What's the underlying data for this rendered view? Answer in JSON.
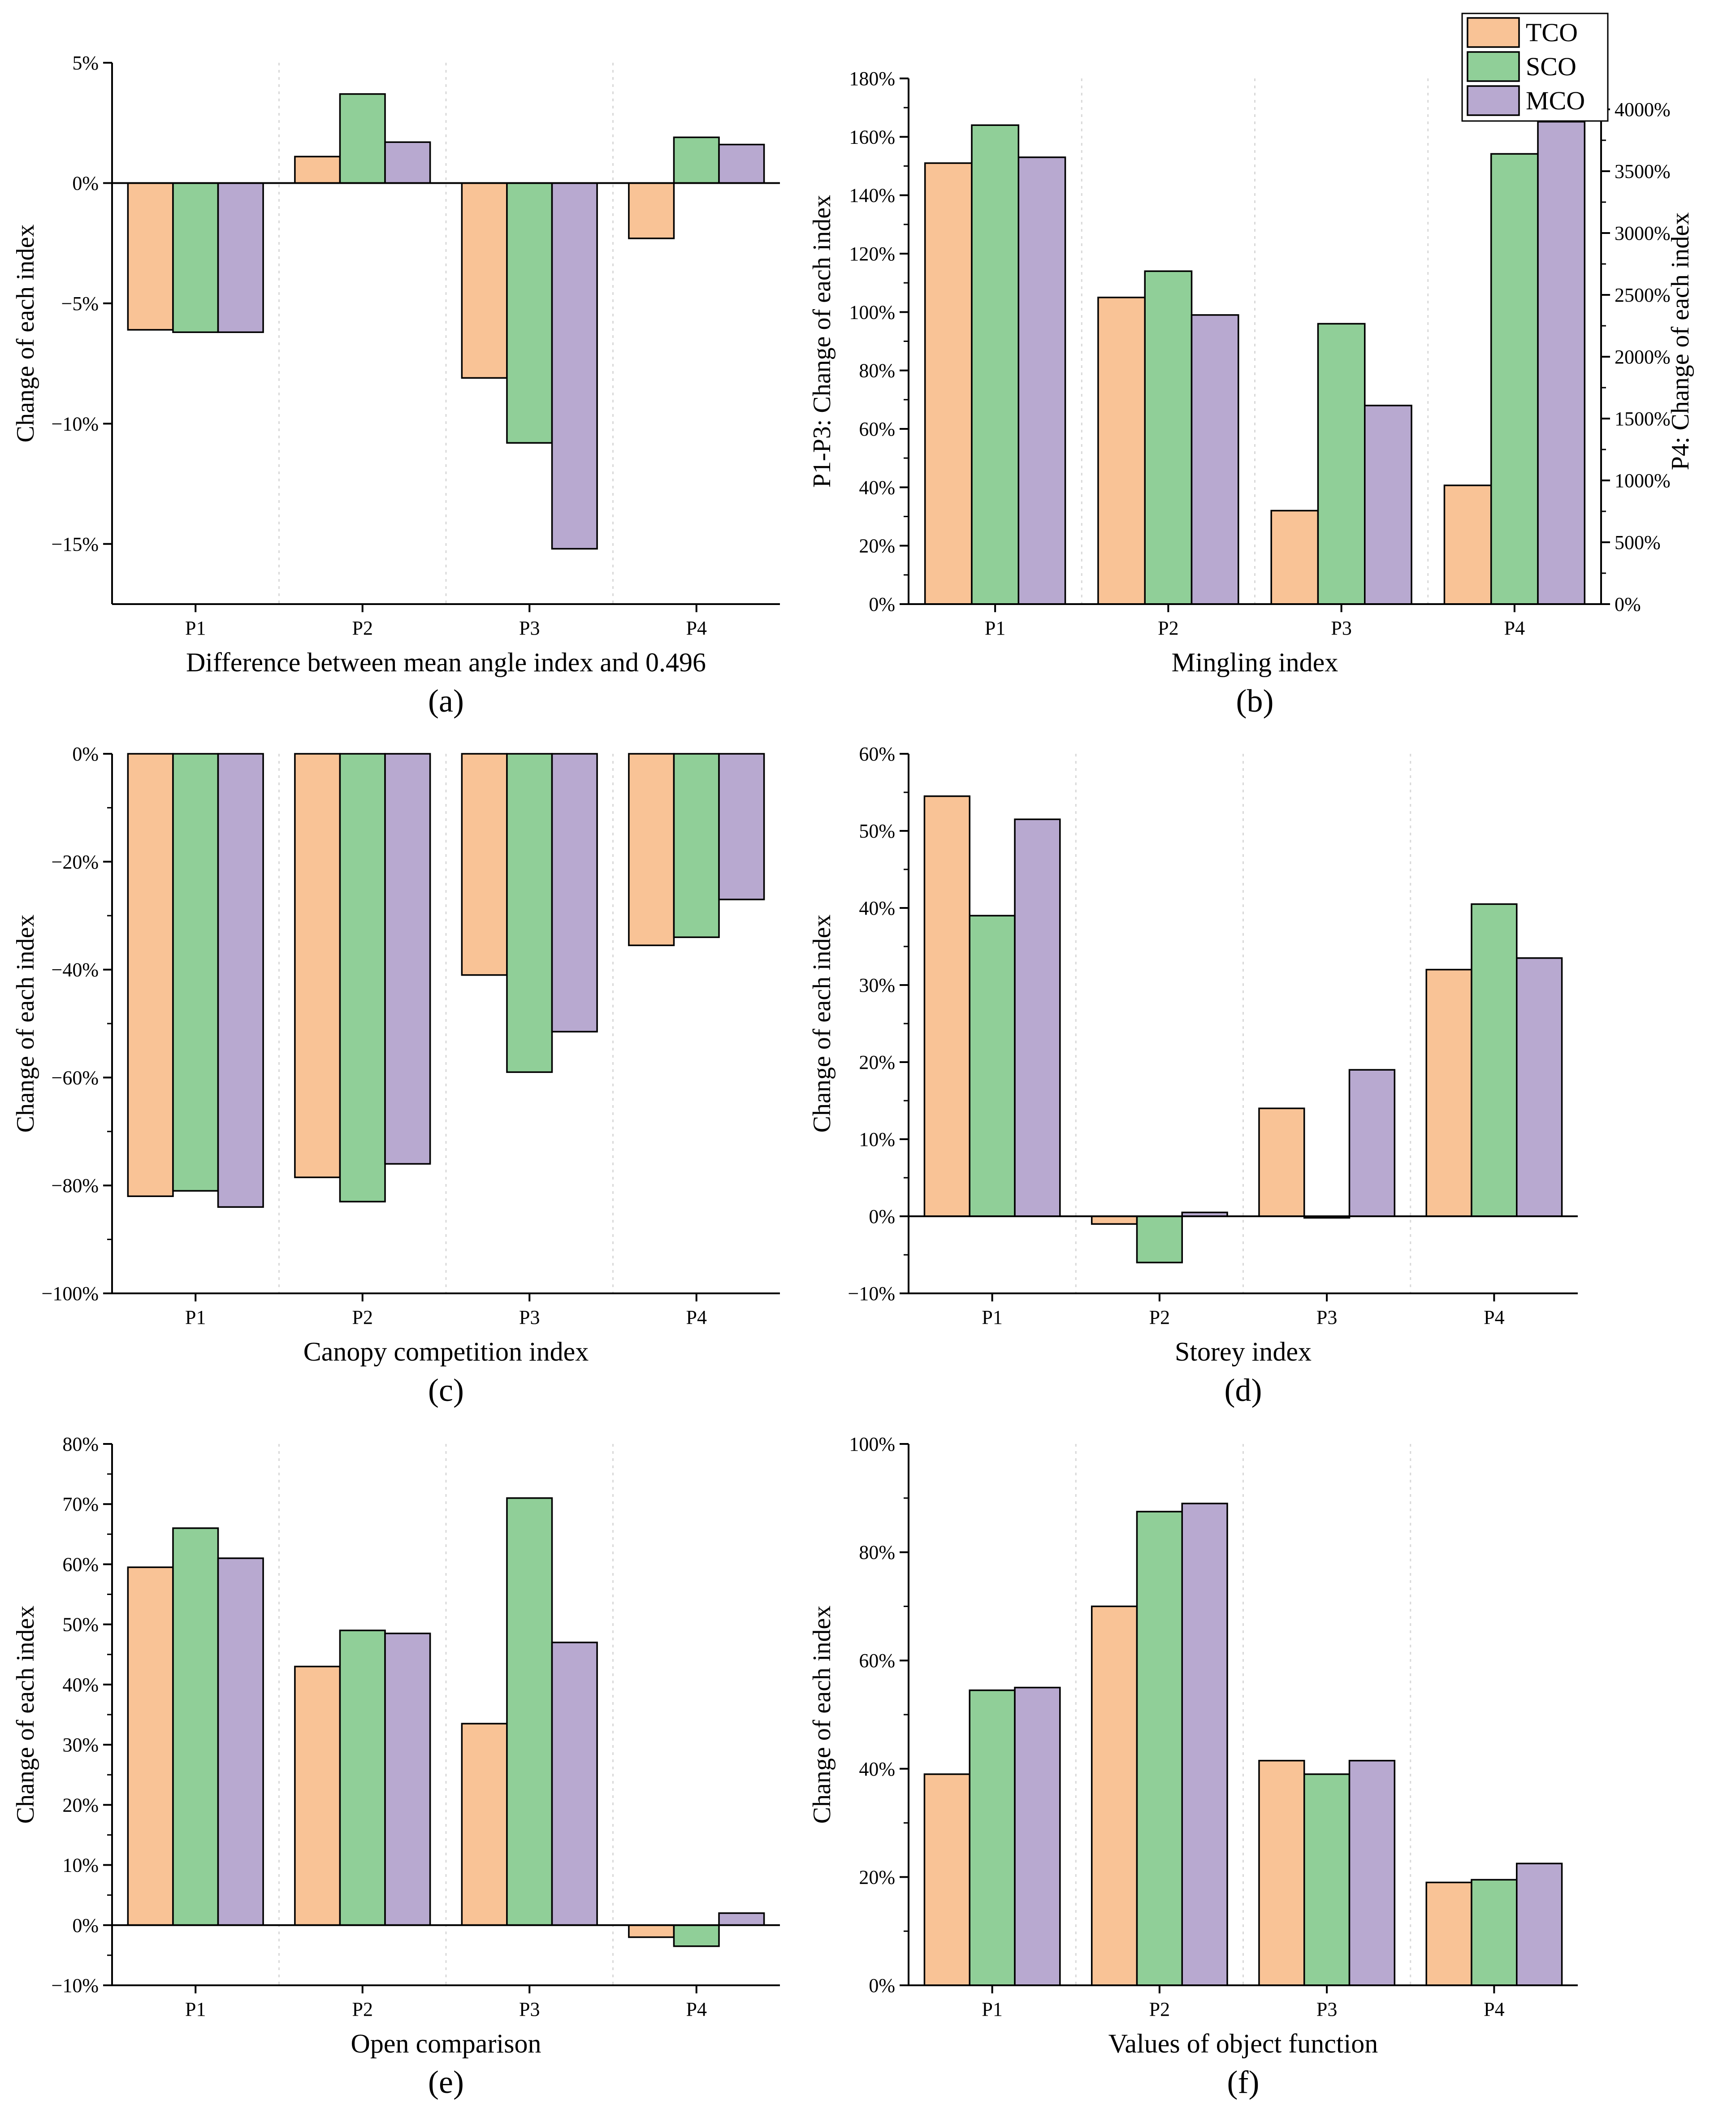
{
  "colors": {
    "TCO": "#f9c396",
    "SCO": "#90cf98",
    "MCO": "#b8a9d0",
    "axis": "#000000",
    "grid": "#d8d8d8"
  },
  "legend": {
    "placement": "top-right",
    "entries": [
      "TCO",
      "SCO",
      "MCO"
    ]
  },
  "chart_data": [
    {
      "id": "a",
      "type": "bar",
      "panel_label": "(a)",
      "xlabel": "Difference between mean angle index and 0.496",
      "ylabel": "Change of each index",
      "categories": [
        "P1",
        "P2",
        "P3",
        "P4"
      ],
      "ylim": [
        -17.5,
        5
      ],
      "yticks": [
        5,
        0,
        -5,
        -10,
        -15
      ],
      "ytick_labels": [
        "5%",
        "0%",
        "−5%",
        "−10%",
        "−15%"
      ],
      "series": [
        {
          "name": "TCO",
          "values": [
            -6.1,
            1.1,
            -8.1,
            -2.3
          ]
        },
        {
          "name": "SCO",
          "values": [
            -6.2,
            3.7,
            -10.8,
            1.9
          ]
        },
        {
          "name": "MCO",
          "values": [
            -6.2,
            1.7,
            -15.2,
            1.6
          ]
        }
      ]
    },
    {
      "id": "b",
      "type": "bar",
      "panel_label": "(b)",
      "xlabel": "Mingling index",
      "ylabel": "P1-P3: Change of each index",
      "ylabel_right": "P4: Change of each index",
      "categories": [
        "P1",
        "P2",
        "P3",
        "P4"
      ],
      "ylim": [
        0,
        180
      ],
      "yticks": [
        0,
        20,
        40,
        60,
        80,
        100,
        120,
        140,
        160,
        180
      ],
      "ytick_labels": [
        "0%",
        "20%",
        "40%",
        "60%",
        "80%",
        "100%",
        "120%",
        "140%",
        "160%",
        "180%"
      ],
      "ylim_right": [
        0,
        4250
      ],
      "yticks_right": [
        0,
        500,
        1000,
        1500,
        2000,
        2500,
        3000,
        3500,
        4000
      ],
      "ytick_labels_right": [
        "0%",
        "500%",
        "1000%",
        "1500%",
        "2000%",
        "2500%",
        "3000%",
        "3500%",
        "4000%"
      ],
      "right_axis_categories": [
        "P4"
      ],
      "series": [
        {
          "name": "TCO",
          "values": [
            151,
            105,
            32,
            960
          ]
        },
        {
          "name": "SCO",
          "values": [
            164,
            114,
            96,
            3640
          ]
        },
        {
          "name": "MCO",
          "values": [
            153,
            99,
            68,
            3900
          ]
        }
      ]
    },
    {
      "id": "c",
      "type": "bar",
      "panel_label": "(c)",
      "xlabel": "Canopy competition index",
      "ylabel": "Change of each index",
      "categories": [
        "P1",
        "P2",
        "P3",
        "P4"
      ],
      "ylim": [
        -100,
        0
      ],
      "yticks": [
        0,
        -20,
        -40,
        -60,
        -80,
        -100
      ],
      "ytick_labels": [
        "0%",
        "−20%",
        "−40%",
        "−60%",
        "−80%",
        "−100%"
      ],
      "series": [
        {
          "name": "TCO",
          "values": [
            -82,
            -78.5,
            -41,
            -35.5
          ]
        },
        {
          "name": "SCO",
          "values": [
            -81,
            -83,
            -59,
            -34
          ]
        },
        {
          "name": "MCO",
          "values": [
            -84,
            -76,
            -51.5,
            -27
          ]
        }
      ]
    },
    {
      "id": "d",
      "type": "bar",
      "panel_label": "(d)",
      "xlabel": "Storey index",
      "ylabel": "Change of each index",
      "categories": [
        "P1",
        "P2",
        "P3",
        "P4"
      ],
      "ylim": [
        -10,
        60
      ],
      "yticks": [
        60,
        50,
        40,
        30,
        20,
        10,
        0,
        -10
      ],
      "ytick_labels": [
        "60%",
        "50%",
        "40%",
        "30%",
        "20%",
        "10%",
        "0%",
        "−10%"
      ],
      "series": [
        {
          "name": "TCO",
          "values": [
            54.5,
            -1,
            14,
            32
          ]
        },
        {
          "name": "SCO",
          "values": [
            39,
            -6,
            -0.2,
            40.5
          ]
        },
        {
          "name": "MCO",
          "values": [
            51.5,
            0.5,
            19,
            33.5
          ]
        }
      ]
    },
    {
      "id": "e",
      "type": "bar",
      "panel_label": "(e)",
      "xlabel": "Open comparison",
      "ylabel": "Change of each index",
      "categories": [
        "P1",
        "P2",
        "P3",
        "P4"
      ],
      "ylim": [
        -10,
        80
      ],
      "yticks": [
        80,
        70,
        60,
        50,
        40,
        30,
        20,
        10,
        0,
        -10
      ],
      "ytick_labels": [
        "80%",
        "70%",
        "60%",
        "50%",
        "40%",
        "30%",
        "20%",
        "10%",
        "0%",
        "−10%"
      ],
      "series": [
        {
          "name": "TCO",
          "values": [
            59.5,
            43,
            33.5,
            -2
          ]
        },
        {
          "name": "SCO",
          "values": [
            66,
            49,
            71,
            -3.5
          ]
        },
        {
          "name": "MCO",
          "values": [
            61,
            48.5,
            47,
            2
          ]
        }
      ]
    },
    {
      "id": "f",
      "type": "bar",
      "panel_label": "(f)",
      "xlabel": "Values of object function",
      "ylabel": "Change of each index",
      "categories": [
        "P1",
        "P2",
        "P3",
        "P4"
      ],
      "ylim": [
        0,
        100
      ],
      "yticks": [
        0,
        20,
        40,
        60,
        80,
        100
      ],
      "ytick_labels": [
        "0%",
        "20%",
        "40%",
        "60%",
        "80%",
        "100%"
      ],
      "series": [
        {
          "name": "TCO",
          "values": [
            39,
            70,
            41.5,
            19
          ]
        },
        {
          "name": "SCO",
          "values": [
            54.5,
            87.5,
            39,
            19.5
          ]
        },
        {
          "name": "MCO",
          "values": [
            55,
            89,
            41.5,
            22.5
          ]
        }
      ]
    }
  ]
}
